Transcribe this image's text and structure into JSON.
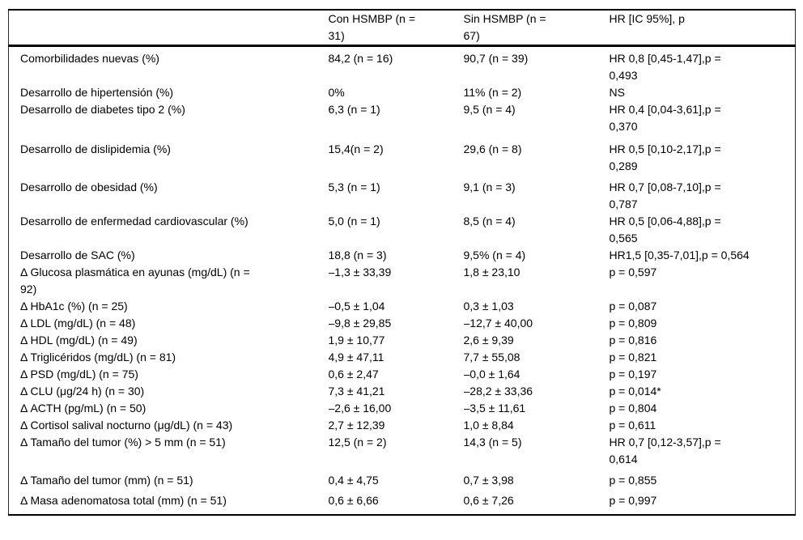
{
  "table": {
    "headers": [
      "",
      "Con HSMBP (n =\n31)",
      "Sin HSMBP (n =\n67)",
      "HR [IC 95%], p"
    ],
    "rows": [
      {
        "label": "Comorbilidades nuevas (%)",
        "con": "84,2 (n = 16)",
        "sin": "90,7 (n = 39)",
        "hr": "HR 0,8 [0,45-1,47],p =\n0,493"
      },
      {
        "label": "Desarrollo de hipertensión (%)",
        "con": "0%",
        "sin": "11% (n = 2)",
        "hr": "NS"
      },
      {
        "label": "Desarrollo de diabetes tipo 2 (%)",
        "con": "6,3 (n = 1)",
        "sin": "9,5 (n = 4)",
        "hr": "HR 0,4 [0,04-3,61],p =\n0,370"
      },
      {
        "label": "Desarrollo de dislipidemia (%)",
        "con": "15,4(n = 2)",
        "sin": "29,6 (n = 8)",
        "hr": "HR 0,5 [0,10-2,17],p =\n0,289"
      },
      {
        "label": "Desarrollo de obesidad (%)",
        "con": "5,3 (n = 1)",
        "sin": "9,1 (n = 3)",
        "hr": "HR 0,7 [0,08-7,10],p =\n0,787"
      },
      {
        "label": "Desarrollo de enfermedad cardiovascular (%)",
        "con": "5,0 (n = 1)",
        "sin": "8,5 (n = 4)",
        "hr": "HR 0,5 [0,06-4,88],p =\n0,565"
      },
      {
        "label": "Desarrollo de SAC (%)",
        "con": "18,8 (n = 3)",
        "sin": "9,5% (n = 4)",
        "hr": "HR1,5 [0,35-7,01],p = 0,564"
      },
      {
        "label": "Δ Glucosa plasmática en ayunas (mg/dL) (n =\n92)",
        "con": "–1,3 ± 33,39",
        "sin": "1,8 ± 23,10",
        "hr": "p = 0,597"
      },
      {
        "label": "Δ HbA1c (%) (n = 25)",
        "con": "–0,5 ± 1,04",
        "sin": "0,3 ± 1,03",
        "hr": "p = 0,087"
      },
      {
        "label": "Δ LDL (mg/dL) (n = 48)",
        "con": "–9,8 ± 29,85",
        "sin": "–12,7 ± 40,00",
        "hr": "p = 0,809"
      },
      {
        "label": "Δ HDL (mg/dL) (n = 49)",
        "con": "1,9 ± 10,77",
        "sin": "2,6 ± 9,39",
        "hr": "p = 0,816"
      },
      {
        "label": "Δ Triglicéridos (mg/dL) (n = 81)",
        "con": "4,9 ± 47,11",
        "sin": "7,7 ± 55,08",
        "hr": "p = 0,821"
      },
      {
        "label": "Δ PSD (mg/dL) (n = 75)",
        "con": "0,6 ± 2,47",
        "sin": "–0,0 ± 1,64",
        "hr": "p = 0,197"
      },
      {
        "label": "Δ CLU (μg/24 h) (n = 30)",
        "con": "7,3 ± 41,21",
        "sin": "–28,2 ± 33,36",
        "hr": "p = 0,014*"
      },
      {
        "label": "Δ ACTH (pg/mL) (n = 50)",
        "con": "–2,6 ± 16,00",
        "sin": "–3,5 ± 11,61",
        "hr": "p = 0,804"
      },
      {
        "label": "Δ Cortisol salival nocturno (μg/dL) (n = 43)",
        "con": "2,7 ± 12,39",
        "sin": "1,0 ± 8,84",
        "hr": "p = 0,611"
      },
      {
        "label": "Δ Tamaño del tumor (%) > 5 mm (n = 51)",
        "con": "12,5 (n = 2)",
        "sin": "14,3 (n = 5)",
        "hr": "HR 0,7 [0,12-3,57],p =\n0,614"
      },
      {
        "label": "Δ Tamaño del tumor (mm) (n = 51)",
        "con": "0,4 ± 4,75",
        "sin": "0,7 ± 3,98",
        "hr": "p = 0,855"
      },
      {
        "label": "Δ Masa adenomatosa total (mm) (n = 51)",
        "con": "0,6 ± 6,66",
        "sin": "0,6 ± 7,26",
        "hr": "p = 0,997"
      }
    ]
  }
}
